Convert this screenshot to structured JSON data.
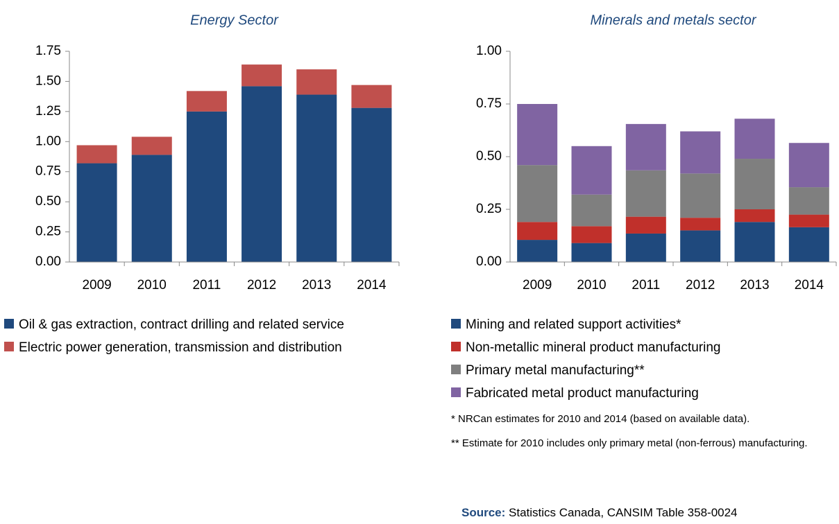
{
  "chart_data": [
    {
      "type": "bar",
      "stacked": true,
      "title": "Energy Sector",
      "categories": [
        "2009",
        "2010",
        "2011",
        "2012",
        "2013",
        "2014"
      ],
      "series": [
        {
          "name": "Oil & gas extraction, contract drilling and related service",
          "color": "#1f497d",
          "values": [
            0.82,
            0.89,
            1.25,
            1.46,
            1.39,
            1.28
          ]
        },
        {
          "name": "Electric power generation, transmission and distribution",
          "color": "#c0504d",
          "values": [
            0.15,
            0.15,
            0.17,
            0.18,
            0.21,
            0.19
          ]
        }
      ],
      "ylim": [
        0,
        1.75
      ],
      "yticks": [
        {
          "value": 0,
          "label": "0.00"
        },
        {
          "value": 0.25,
          "label": "0.25"
        },
        {
          "value": 0.5,
          "label": "0.50"
        },
        {
          "value": 0.75,
          "label": "0.75"
        },
        {
          "value": 1,
          "label": "1.00"
        },
        {
          "value": 1.25,
          "label": "1.25"
        },
        {
          "value": 1.5,
          "label": "1.50"
        },
        {
          "value": 1.75,
          "label": "1.75"
        }
      ]
    },
    {
      "type": "bar",
      "stacked": true,
      "title": "Minerals and metals  sector",
      "categories": [
        "2009",
        "2010",
        "2011",
        "2012",
        "2013",
        "2014"
      ],
      "series": [
        {
          "name": "Mining and related support activities*",
          "color": "#1f497d",
          "values": [
            0.105,
            0.09,
            0.135,
            0.15,
            0.19,
            0.165
          ]
        },
        {
          "name": "Non-metallic mineral product manufacturing",
          "color": "#c0302b",
          "values": [
            0.085,
            0.08,
            0.08,
            0.06,
            0.06,
            0.06
          ]
        },
        {
          "name": "Primary metal manufacturing**",
          "color": "#7f7f7f",
          "values": [
            0.27,
            0.15,
            0.22,
            0.21,
            0.24,
            0.13
          ]
        },
        {
          "name": "Fabricated metal product manufacturing",
          "color": "#8064a2",
          "values": [
            0.29,
            0.23,
            0.22,
            0.2,
            0.19,
            0.21
          ]
        }
      ],
      "ylim": [
        0,
        1
      ],
      "yticks": [
        {
          "value": 0,
          "label": "0.00"
        },
        {
          "value": 0.25,
          "label": "0.25"
        },
        {
          "value": 0.5,
          "label": "0.50"
        },
        {
          "value": 0.75,
          "label": "0.75"
        },
        {
          "value": 1,
          "label": "1.00"
        }
      ]
    }
  ],
  "notes": [
    "* NRCan estimates for 2010 and 2014 (based on available data).",
    "** Estimate for 2010 includes only primary metal (non-ferrous) manufacturing."
  ],
  "source": {
    "label": "Source:",
    "text": "Statistics Canada, CANSIM Table 358-0024"
  }
}
